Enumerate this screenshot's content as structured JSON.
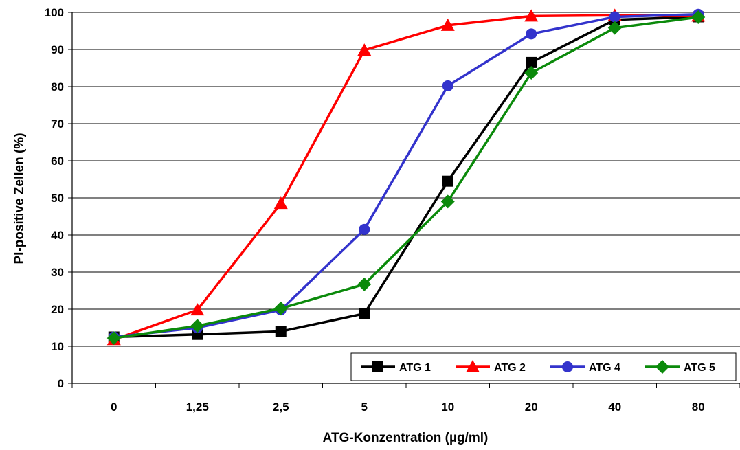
{
  "chart_data": {
    "type": "line",
    "title": "",
    "xlabel": "ATG-Konzentration (µg/ml)",
    "ylabel": "PI-positive Zellen (%)",
    "categories": [
      "0",
      "1,25",
      "2,5",
      "5",
      "10",
      "20",
      "40",
      "80"
    ],
    "yticks": [
      "0",
      "10",
      "20",
      "30",
      "40",
      "50",
      "60",
      "70",
      "80",
      "90",
      "100"
    ],
    "ylim": [
      0,
      100
    ],
    "grid": "horizontal",
    "legend_position": "bottom-right",
    "series": [
      {
        "name": "ATG 1",
        "color": "#000000",
        "marker": "square",
        "values": [
          12.5,
          13.2,
          14.0,
          18.8,
          54.5,
          86.5,
          98.0,
          98.8
        ]
      },
      {
        "name": "ATG 2",
        "color": "#ff0000",
        "marker": "triangle",
        "values": [
          11.8,
          19.8,
          48.5,
          89.8,
          96.5,
          99.0,
          99.2,
          99.0
        ]
      },
      {
        "name": "ATG 4",
        "color": "#3333cc",
        "marker": "circle",
        "values": [
          12.5,
          15.0,
          19.8,
          41.5,
          80.2,
          94.2,
          98.8,
          99.5
        ]
      },
      {
        "name": "ATG 5",
        "color": "#0b8a0b",
        "marker": "diamond",
        "values": [
          12.2,
          15.5,
          20.2,
          26.7,
          49.0,
          83.7,
          95.8,
          98.7
        ]
      }
    ]
  }
}
